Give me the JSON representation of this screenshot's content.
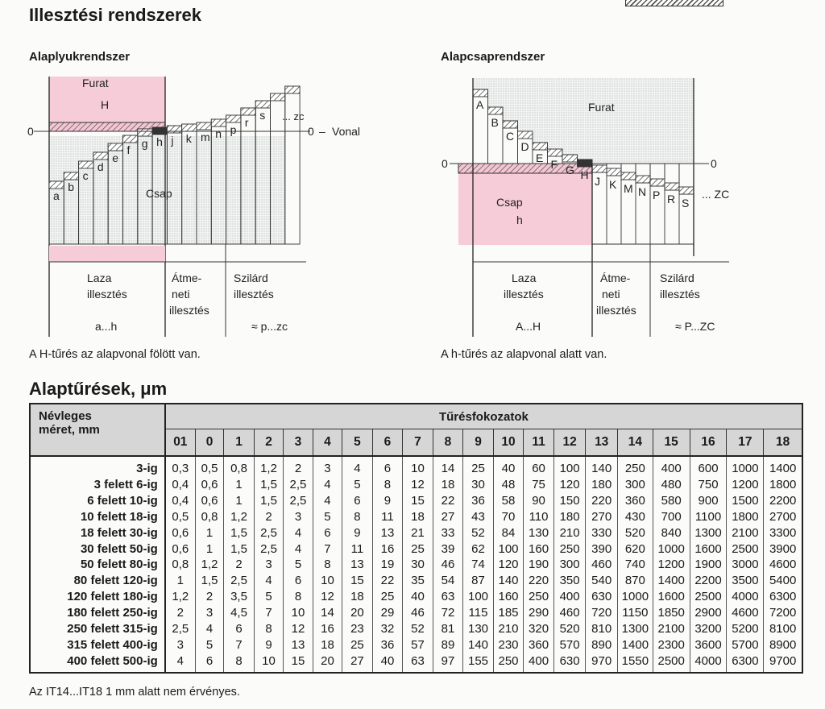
{
  "title": "Illesztési rendszerek",
  "left_diagram": {
    "subtitle": "Alaplyukrendszer",
    "hole_label": "Furat",
    "hole_letter": "H",
    "shaft_label": "Csap",
    "zero_left": "0",
    "zero_right": "0",
    "line_label": "Vonal",
    "ellipsis_zc": "... zc",
    "letters": [
      "a",
      "b",
      "c",
      "d",
      "e",
      "f",
      "g",
      "h",
      "j",
      "k",
      "m",
      "n",
      "p",
      "r",
      "s"
    ],
    "cat_loose": [
      "Laza",
      "illesztés"
    ],
    "cat_trans": [
      "Átme-",
      "neti",
      "illesztés"
    ],
    "cat_tight": [
      "Szilárd",
      "illesztés"
    ],
    "range_loose": "a...h",
    "range_tight": "≈ p...zc",
    "caption": "A H-tűrés az alapvonal fölött van."
  },
  "right_diagram": {
    "subtitle": "Alapcsaprendszer",
    "hole_label": "Furat",
    "shaft_label": "Csap",
    "shaft_letter": "h",
    "zero_left": "0",
    "zero_right": "0",
    "ellipsis_zc": "... ZC",
    "upper_letters": [
      "A",
      "B",
      "C",
      "D",
      "E",
      "F",
      "G",
      "H"
    ],
    "lower_letters": [
      "J",
      "K",
      "M",
      "N",
      "P",
      "R",
      "S"
    ],
    "cat_loose": [
      "Laza",
      "illesztés"
    ],
    "cat_trans": [
      "Átme-",
      "neti",
      "illesztés"
    ],
    "cat_tight": [
      "Szilárd",
      "illesztés"
    ],
    "range_loose": "A...H",
    "range_tight": "≈ P...ZC",
    "caption": "A h-tűrés az alapvonal alatt van."
  },
  "table": {
    "title": "Alaptűrések, μm",
    "size_header": [
      "Névleges",
      "méret, mm"
    ],
    "grades_header": "Tűrésfokozatok",
    "grades": [
      "01",
      "0",
      "1",
      "2",
      "3",
      "4",
      "5",
      "6",
      "7",
      "8",
      "9",
      "10",
      "11",
      "12",
      "13",
      "14",
      "15",
      "16",
      "17",
      "18"
    ],
    "rows": [
      {
        "size": "3-ig",
        "values": [
          "0,3",
          "0,5",
          "0,8",
          "1,2",
          "2",
          "3",
          "4",
          "6",
          "10",
          "14",
          "25",
          "40",
          "60",
          "100",
          "140",
          "250",
          "400",
          "600",
          "1000",
          "1400"
        ]
      },
      {
        "size": "3 felett 6-ig",
        "values": [
          "0,4",
          "0,6",
          "1",
          "1,5",
          "2,5",
          "4",
          "5",
          "8",
          "12",
          "18",
          "30",
          "48",
          "75",
          "120",
          "180",
          "300",
          "480",
          "750",
          "1200",
          "1800"
        ]
      },
      {
        "size": "6 felett 10-ig",
        "values": [
          "0,4",
          "0,6",
          "1",
          "1,5",
          "2,5",
          "4",
          "6",
          "9",
          "15",
          "22",
          "36",
          "58",
          "90",
          "150",
          "220",
          "360",
          "580",
          "900",
          "1500",
          "2200"
        ]
      },
      {
        "size": "10 felett 18-ig",
        "values": [
          "0,5",
          "0,8",
          "1,2",
          "2",
          "3",
          "5",
          "8",
          "11",
          "18",
          "27",
          "43",
          "70",
          "110",
          "180",
          "270",
          "430",
          "700",
          "1100",
          "1800",
          "2700"
        ]
      },
      {
        "size": "18 felett 30-ig",
        "values": [
          "0,6",
          "1",
          "1,5",
          "2,5",
          "4",
          "6",
          "9",
          "13",
          "21",
          "33",
          "52",
          "84",
          "130",
          "210",
          "330",
          "520",
          "840",
          "1300",
          "2100",
          "3300"
        ]
      },
      {
        "size": "30 felett 50-ig",
        "values": [
          "0,6",
          "1",
          "1,5",
          "2,5",
          "4",
          "7",
          "11",
          "16",
          "25",
          "39",
          "62",
          "100",
          "160",
          "250",
          "390",
          "620",
          "1000",
          "1600",
          "2500",
          "3900"
        ]
      },
      {
        "size": "50 felett 80-ig",
        "values": [
          "0,8",
          "1,2",
          "2",
          "3",
          "5",
          "8",
          "13",
          "19",
          "30",
          "46",
          "74",
          "120",
          "190",
          "300",
          "460",
          "740",
          "1200",
          "1900",
          "3000",
          "4600"
        ]
      },
      {
        "size": "80 felett 120-ig",
        "values": [
          "1",
          "1,5",
          "2,5",
          "4",
          "6",
          "10",
          "15",
          "22",
          "35",
          "54",
          "87",
          "140",
          "220",
          "350",
          "540",
          "870",
          "1400",
          "2200",
          "3500",
          "5400"
        ]
      },
      {
        "size": "120 felett 180-ig",
        "values": [
          "1,2",
          "2",
          "3,5",
          "5",
          "8",
          "12",
          "18",
          "25",
          "40",
          "63",
          "100",
          "160",
          "250",
          "400",
          "630",
          "1000",
          "1600",
          "2500",
          "4000",
          "6300"
        ]
      },
      {
        "size": "180 felett 250-ig",
        "values": [
          "2",
          "3",
          "4,5",
          "7",
          "10",
          "14",
          "20",
          "29",
          "46",
          "72",
          "115",
          "185",
          "290",
          "460",
          "720",
          "1150",
          "1850",
          "2900",
          "4600",
          "7200"
        ]
      },
      {
        "size": "250 felett 315-ig",
        "values": [
          "2,5",
          "4",
          "6",
          "8",
          "12",
          "16",
          "23",
          "32",
          "52",
          "81",
          "130",
          "210",
          "320",
          "520",
          "810",
          "1300",
          "2100",
          "3200",
          "5200",
          "8100"
        ]
      },
      {
        "size": "315 felett 400-ig",
        "values": [
          "3",
          "5",
          "7",
          "9",
          "13",
          "18",
          "25",
          "36",
          "57",
          "89",
          "140",
          "230",
          "360",
          "570",
          "890",
          "1400",
          "2300",
          "3600",
          "5700",
          "8900"
        ]
      },
      {
        "size": "400 felett 500-ig",
        "values": [
          "4",
          "6",
          "8",
          "10",
          "15",
          "20",
          "27",
          "40",
          "63",
          "97",
          "155",
          "250",
          "400",
          "630",
          "970",
          "1550",
          "2500",
          "4000",
          "6300",
          "9700"
        ]
      }
    ],
    "footnote": "Az IT14...IT18 1 mm alatt nem érvényes."
  }
}
